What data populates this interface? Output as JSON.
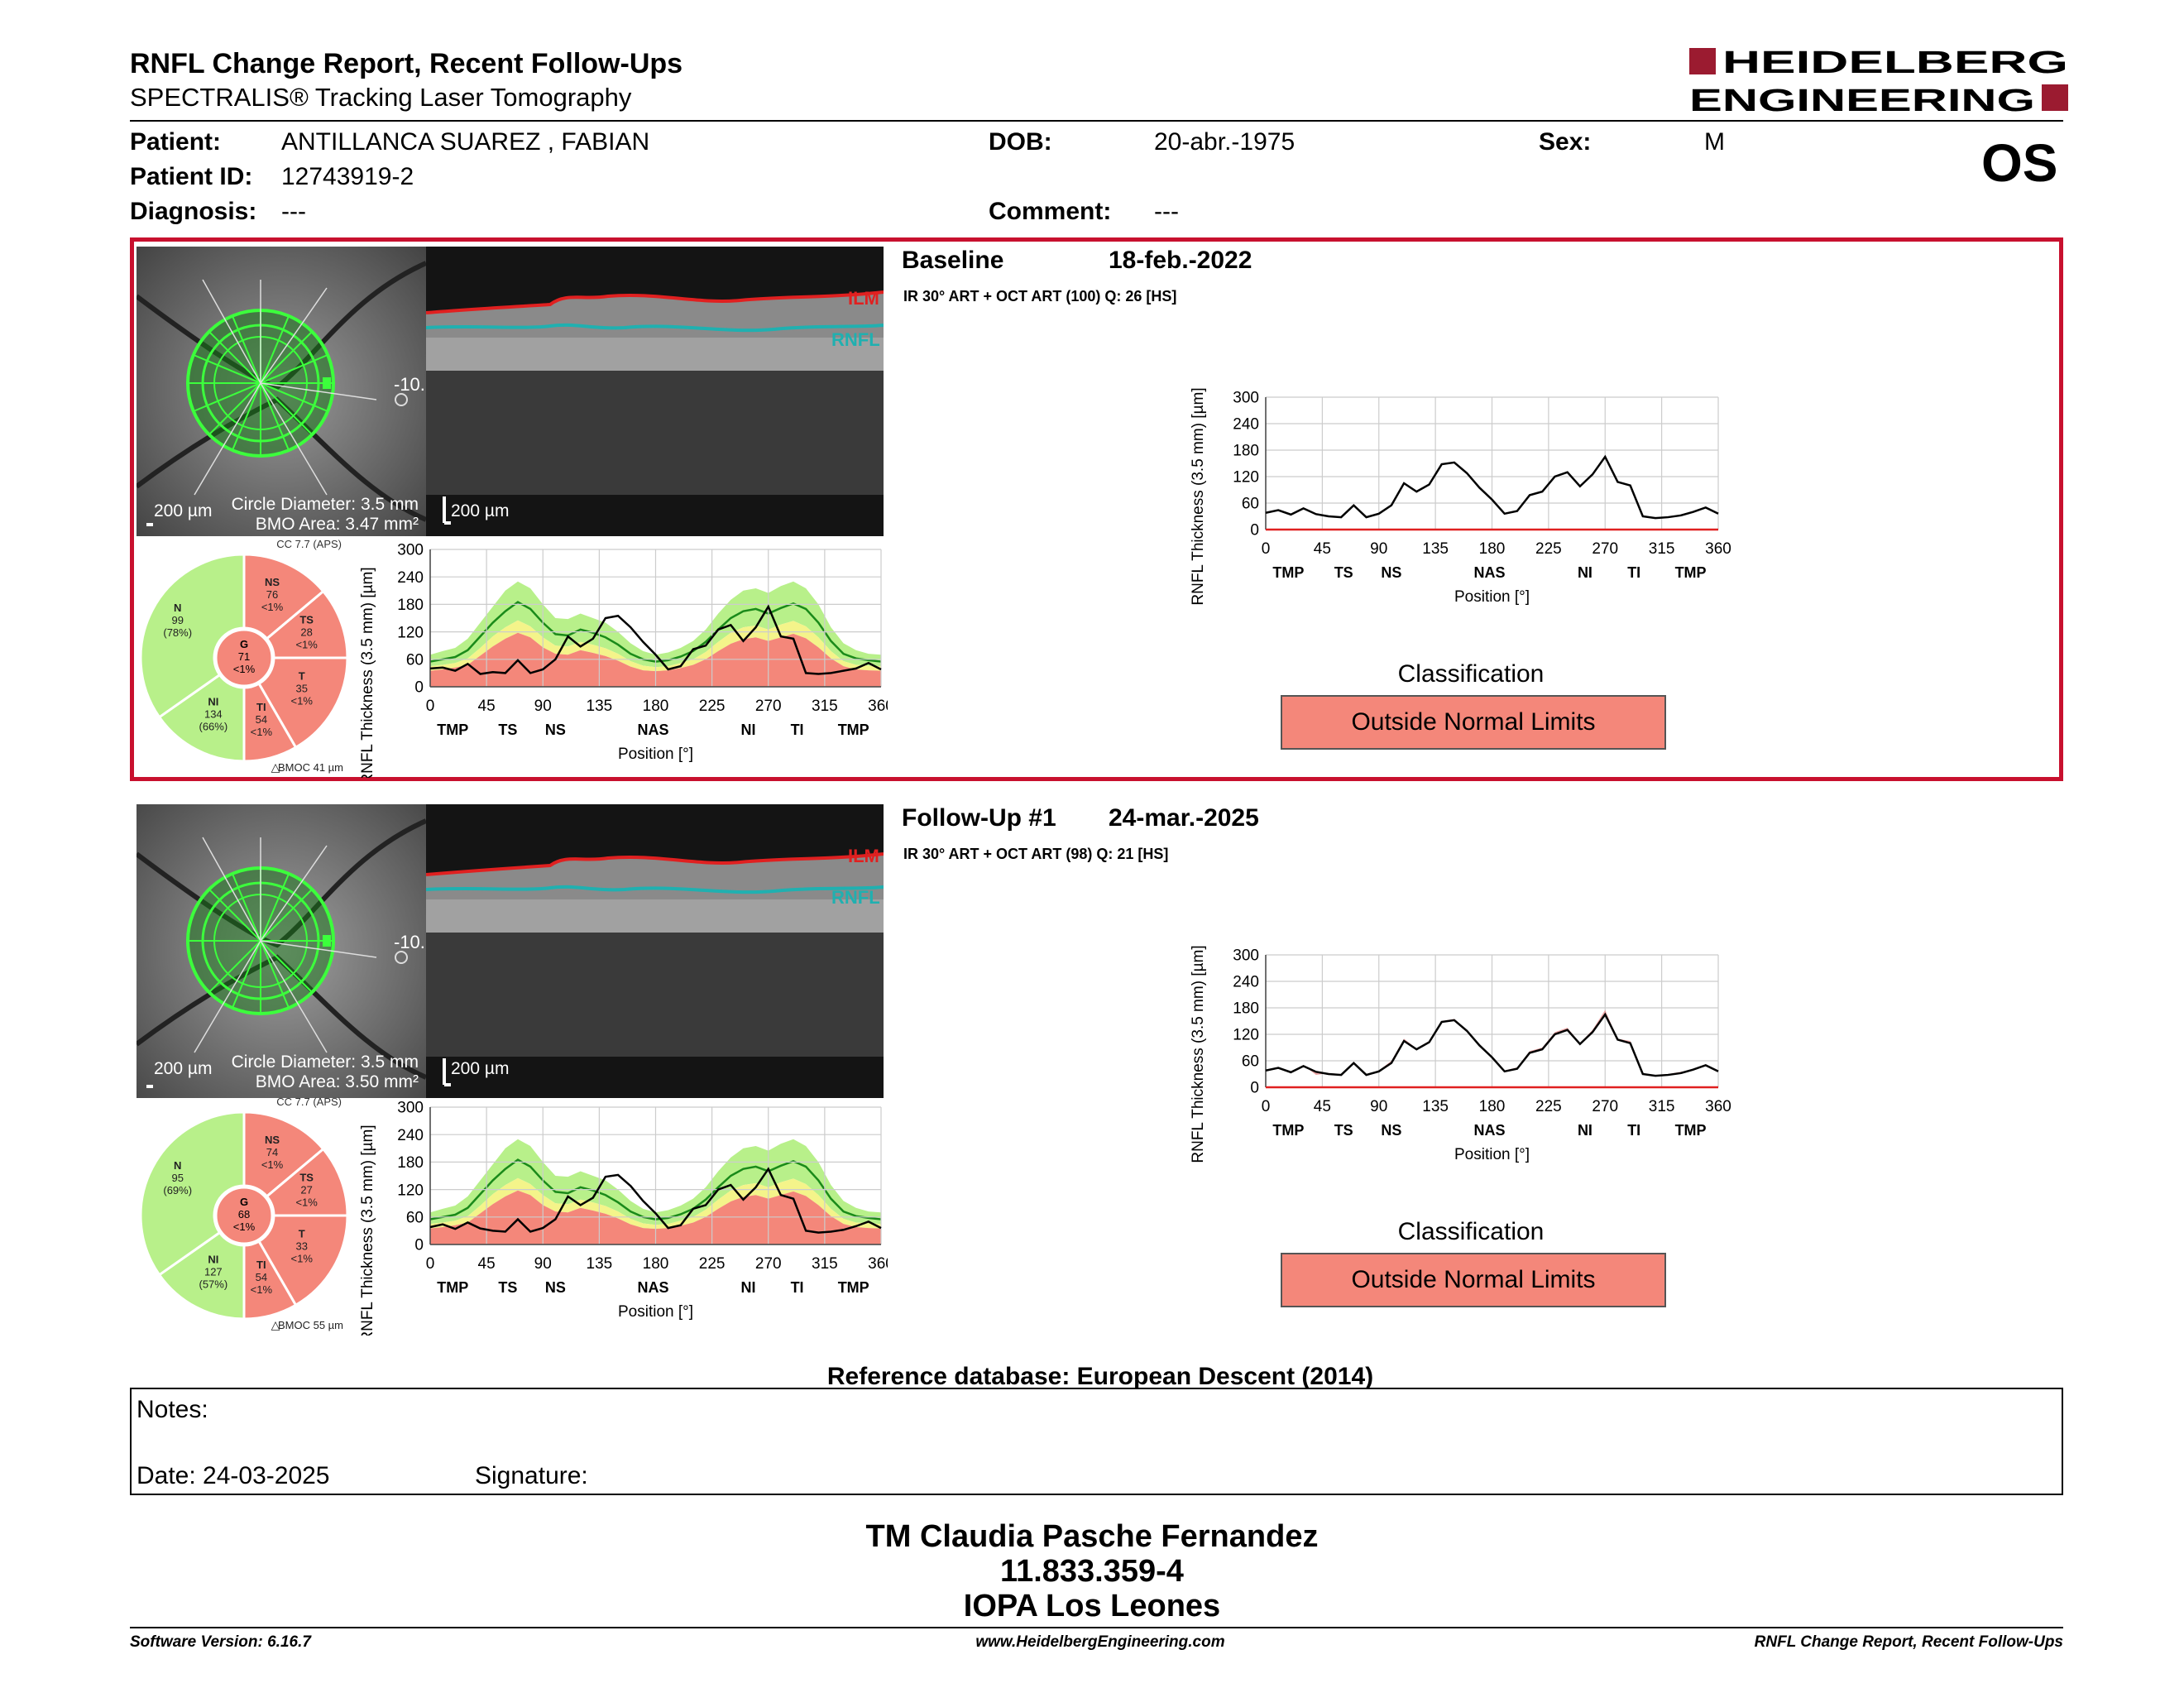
{
  "header": {
    "title": "RNFL Change Report, Recent Follow-Ups",
    "subtitle": "SPECTRALIS® Tracking Laser Tomography",
    "brand_line1": "HEIDELBERG",
    "brand_line2": "ENGINEERING",
    "eye": "OS"
  },
  "patient": {
    "patient_label": "Patient:",
    "patient_name": "ANTILLANCA SUAREZ , FABIAN",
    "id_label": "Patient ID:",
    "id_value": "12743919-2",
    "diag_label": "Diagnosis:",
    "diag_value": "---",
    "dob_label": "DOB:",
    "dob_value": "20-abr.-1975",
    "comment_label": "Comment:",
    "comment_value": "---",
    "sex_label": "Sex:",
    "sex_value": "M"
  },
  "exams": [
    {
      "title": "Baseline",
      "date": "18-feb.-2022",
      "scan_info": "IR 30° ART + OCT ART (100) Q: 26 [HS]",
      "scale_fundus": "200 µm",
      "circle_diameter": "Circle Diameter: 3.5 mm",
      "bmo_area": "BMO Area: 3.47 mm²",
      "scale_oct": "200 µm",
      "ilm_label": "ILM",
      "rnfl_label": "RNFL",
      "fundus_marker": "-10.",
      "cc": "CC 7.7 (APS)",
      "bmoc": "BMOC 41 µm",
      "sectors": {
        "NS": {
          "name": "NS",
          "value": "76",
          "pct": "<1%"
        },
        "TS": {
          "name": "TS",
          "value": "28",
          "pct": "<1%"
        },
        "N": {
          "name": "N",
          "value": "99",
          "pct": "(78%)"
        },
        "G": {
          "name": "G",
          "value": "71",
          "pct": "<1%"
        },
        "T": {
          "name": "T",
          "value": "35",
          "pct": "<1%"
        },
        "NI": {
          "name": "NI",
          "value": "134",
          "pct": "(66%)"
        },
        "TI": {
          "name": "TI",
          "value": "54",
          "pct": "<1%"
        }
      },
      "classification_label": "Classification",
      "classification": "Outside Normal Limits"
    },
    {
      "title": "Follow-Up #1",
      "date": "24-mar.-2025",
      "scan_info": "IR 30° ART + OCT ART (98) Q: 21 [HS]",
      "scale_fundus": "200 µm",
      "circle_diameter": "Circle Diameter: 3.5 mm",
      "bmo_area": "BMO Area: 3.50 mm²",
      "scale_oct": "200 µm",
      "ilm_label": "ILM",
      "rnfl_label": "RNFL",
      "fundus_marker": "-10.",
      "cc": "CC 7.7 (APS)",
      "bmoc": "BMOC 55 µm",
      "sectors": {
        "NS": {
          "name": "NS",
          "value": "74",
          "pct": "<1%"
        },
        "TS": {
          "name": "TS",
          "value": "27",
          "pct": "<1%"
        },
        "N": {
          "name": "N",
          "value": "95",
          "pct": "(69%)"
        },
        "G": {
          "name": "G",
          "value": "68",
          "pct": "<1%"
        },
        "T": {
          "name": "T",
          "value": "33",
          "pct": "<1%"
        },
        "NI": {
          "name": "NI",
          "value": "127",
          "pct": "(57%)"
        },
        "TI": {
          "name": "TI",
          "value": "54",
          "pct": "<1%"
        }
      },
      "classification_label": "Classification",
      "classification": "Outside Normal Limits"
    }
  ],
  "chart_data": [
    {
      "type": "line",
      "ylabel": "RNFL Thickness (3.5 mm) [µm]",
      "xlabel": "Position [°]",
      "xlim": [
        0,
        360
      ],
      "ylim": [
        0,
        300
      ],
      "x_ticks": [
        "0",
        "45",
        "90",
        "135",
        "180",
        "225",
        "270",
        "315",
        "360"
      ],
      "y_ticks": [
        "0",
        "60",
        "120",
        "180",
        "240",
        "300"
      ],
      "sector_ticks": [
        [
          "TMP",
          18
        ],
        [
          "TS",
          62
        ],
        [
          "NS",
          100
        ],
        [
          "NAS",
          178
        ],
        [
          "NI",
          254
        ],
        [
          "TI",
          293
        ],
        [
          "TMP",
          338
        ]
      ],
      "x": [
        0,
        10,
        20,
        30,
        40,
        50,
        60,
        70,
        80,
        90,
        100,
        110,
        120,
        130,
        140,
        150,
        160,
        170,
        180,
        190,
        200,
        210,
        220,
        230,
        240,
        250,
        260,
        270,
        280,
        290,
        300,
        310,
        320,
        330,
        340,
        350,
        360
      ],
      "series": [
        {
          "values": [
            40,
            42,
            35,
            50,
            28,
            32,
            30,
            58,
            30,
            38,
            60,
            110,
            88,
            105,
            150,
            155,
            130,
            98,
            70,
            38,
            45,
            82,
            90,
            125,
            135,
            100,
            130,
            175,
            110,
            105,
            30,
            28,
            30,
            35,
            40,
            52,
            38
          ]
        }
      ],
      "normal_band": {
        "upper": [
          70,
          78,
          85,
          105,
          140,
          175,
          210,
          230,
          215,
          180,
          150,
          148,
          160,
          150,
          140,
          120,
          95,
          78,
          70,
          75,
          85,
          100,
          125,
          160,
          190,
          210,
          215,
          205,
          220,
          230,
          215,
          180,
          130,
          95,
          80,
          72,
          70
        ],
        "middle": [
          55,
          60,
          65,
          80,
          110,
          140,
          165,
          185,
          170,
          140,
          115,
          112,
          125,
          118,
          108,
          92,
          72,
          60,
          55,
          58,
          66,
          78,
          98,
          125,
          150,
          165,
          170,
          160,
          172,
          182,
          170,
          140,
          100,
          72,
          62,
          58,
          55
        ],
        "lower_yellow": [
          45,
          48,
          52,
          62,
          85,
          110,
          130,
          145,
          132,
          108,
          90,
          88,
          98,
          92,
          84,
          72,
          56,
          46,
          43,
          45,
          52,
          60,
          76,
          98,
          118,
          130,
          134,
          125,
          136,
          144,
          132,
          108,
          78,
          56,
          48,
          46,
          45
        ],
        "lower_red": [
          35,
          38,
          42,
          48,
          68,
          88,
          105,
          118,
          108,
          86,
          72,
          70,
          80,
          74,
          67,
          57,
          44,
          36,
          34,
          36,
          41,
          48,
          60,
          78,
          94,
          104,
          108,
          100,
          108,
          116,
          106,
          86,
          62,
          45,
          38,
          36,
          35
        ]
      }
    },
    {
      "type": "line",
      "ylabel": "RNFL Thickness (3.5 mm) [µm]",
      "xlabel": "Position [°]",
      "xlim": [
        0,
        360
      ],
      "ylim": [
        0,
        300
      ],
      "x_ticks": [
        "0",
        "45",
        "90",
        "135",
        "180",
        "225",
        "270",
        "315",
        "360"
      ],
      "y_ticks": [
        "0",
        "60",
        "120",
        "180",
        "240",
        "300"
      ],
      "sector_ticks": [
        [
          "TMP",
          18
        ],
        [
          "TS",
          62
        ],
        [
          "NS",
          100
        ],
        [
          "NAS",
          178
        ],
        [
          "NI",
          254
        ],
        [
          "TI",
          293
        ],
        [
          "TMP",
          338
        ]
      ],
      "x": [
        0,
        10,
        20,
        30,
        40,
        50,
        60,
        70,
        80,
        90,
        100,
        110,
        120,
        130,
        140,
        150,
        160,
        170,
        180,
        190,
        200,
        210,
        220,
        230,
        240,
        250,
        260,
        270,
        280,
        290,
        300,
        310,
        320,
        330,
        340,
        350,
        360
      ],
      "series": [
        {
          "values": [
            38,
            44,
            34,
            48,
            35,
            30,
            28,
            55,
            28,
            36,
            55,
            105,
            86,
            102,
            148,
            152,
            128,
            95,
            68,
            36,
            42,
            78,
            86,
            120,
            130,
            98,
            125,
            165,
            108,
            100,
            30,
            26,
            28,
            32,
            40,
            50,
            36
          ]
        }
      ]
    },
    {
      "type": "line",
      "ylabel": "RNFL Thickness (3.5 mm) [µm]",
      "xlabel": "Position [°]",
      "xlim": [
        0,
        360
      ],
      "ylim": [
        0,
        300
      ],
      "x_ticks": [
        "0",
        "45",
        "90",
        "135",
        "180",
        "225",
        "270",
        "315",
        "360"
      ],
      "y_ticks": [
        "0",
        "60",
        "120",
        "180",
        "240",
        "300"
      ],
      "sector_ticks": [
        [
          "TMP",
          18
        ],
        [
          "TS",
          62
        ],
        [
          "NS",
          100
        ],
        [
          "NAS",
          178
        ],
        [
          "NI",
          254
        ],
        [
          "TI",
          293
        ],
        [
          "TMP",
          338
        ]
      ],
      "x": [
        0,
        10,
        20,
        30,
        40,
        50,
        60,
        70,
        80,
        90,
        100,
        110,
        120,
        130,
        140,
        150,
        160,
        170,
        180,
        190,
        200,
        210,
        220,
        230,
        240,
        250,
        260,
        270,
        280,
        290,
        300,
        310,
        320,
        330,
        340,
        350,
        360
      ],
      "series": [
        {
          "values": [
            38,
            44,
            34,
            48,
            35,
            30,
            28,
            55,
            28,
            36,
            55,
            105,
            86,
            102,
            148,
            152,
            128,
            95,
            68,
            36,
            42,
            78,
            86,
            120,
            130,
            98,
            125,
            165,
            108,
            100,
            30,
            26,
            28,
            32,
            40,
            50,
            36
          ]
        }
      ],
      "normal_band": {
        "upper": [
          70,
          78,
          85,
          105,
          140,
          175,
          210,
          230,
          215,
          180,
          150,
          148,
          160,
          150,
          140,
          120,
          95,
          78,
          70,
          75,
          85,
          100,
          125,
          160,
          190,
          210,
          215,
          205,
          220,
          230,
          215,
          180,
          130,
          95,
          80,
          72,
          70
        ],
        "middle": [
          55,
          60,
          65,
          80,
          110,
          140,
          165,
          185,
          170,
          140,
          115,
          112,
          125,
          118,
          108,
          92,
          72,
          60,
          55,
          58,
          66,
          78,
          98,
          125,
          150,
          165,
          170,
          160,
          172,
          182,
          170,
          140,
          100,
          72,
          62,
          58,
          55
        ],
        "lower_yellow": [
          45,
          48,
          52,
          62,
          85,
          110,
          130,
          145,
          132,
          108,
          90,
          88,
          98,
          92,
          84,
          72,
          56,
          46,
          43,
          45,
          52,
          60,
          76,
          98,
          118,
          130,
          134,
          125,
          136,
          144,
          132,
          108,
          78,
          56,
          48,
          46,
          45
        ],
        "lower_red": [
          35,
          38,
          42,
          48,
          68,
          88,
          105,
          118,
          108,
          86,
          72,
          70,
          80,
          74,
          67,
          57,
          44,
          36,
          34,
          36,
          41,
          48,
          60,
          78,
          94,
          104,
          108,
          100,
          108,
          116,
          106,
          86,
          62,
          45,
          38,
          36,
          35
        ]
      }
    }
  ],
  "reference_db": "Reference database: European Descent (2014)",
  "notes": {
    "notes_label": "Notes:",
    "date_label": "Date: 24-03-2025",
    "signature_label": "Signature:"
  },
  "footer": {
    "line1": "TM Claudia Pasche Fernandez",
    "line2": "11.833.359-4",
    "line3": "IOPA Los Leones",
    "software": "Software Version: 6.16.7",
    "website": "www.HeidelbergEngineering.com",
    "report_name": "RNFL Change Report, Recent Follow-Ups"
  },
  "colors": {
    "frame_red": "#c8102e",
    "outside_limits": "#f4877a",
    "normal_green": "#b8f08a",
    "borderline_yellow": "#f4f48a",
    "abnormal_red": "#f4877a",
    "ilm_red": "#e02020",
    "rnfl_cyan": "#20b0b0"
  }
}
